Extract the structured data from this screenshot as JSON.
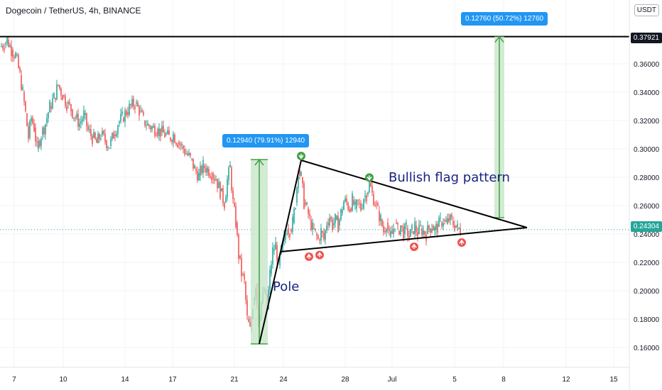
{
  "header": {
    "title": "Dogecoin / TetherUS, 4h, BINANCE",
    "currency": "USDT"
  },
  "colors": {
    "up": "#26a69a",
    "down": "#ef5350",
    "measure_fill": "#c8e6c9",
    "measure_border": "#43a047",
    "label_bg": "#2196f3",
    "current_price": "#26a69a",
    "arrow_up_marker": "#ef5350",
    "arrow_down_marker": "#43a047"
  },
  "price_tags": {
    "resistance": "0.37921",
    "current": "0.24304"
  },
  "measures": {
    "pole": "0.12940 (79.91%) 12940",
    "target": "0.12760 (50.72%) 12760"
  },
  "annotations": {
    "pole": "Pole",
    "pattern": "Bullish flag pattern"
  },
  "chart_data": {
    "type": "candlestick",
    "y_range": [
      0.145,
      0.395
    ],
    "y_ticks": [
      "0.16000",
      "0.18000",
      "0.20000",
      "0.22000",
      "0.24000",
      "0.26000",
      "0.28000",
      "0.30000",
      "0.32000",
      "0.34000",
      "0.36000"
    ],
    "x_ticks": [
      "7",
      "10",
      "14",
      "17",
      "21",
      "24",
      "28",
      "Jul",
      "5",
      "8",
      "12",
      "15"
    ],
    "resistance_level": 0.37921,
    "current_price": 0.24304,
    "grid": true,
    "close_path": [
      [
        0,
        0.372
      ],
      [
        6,
        0.374
      ],
      [
        10,
        0.377
      ],
      [
        16,
        0.37
      ],
      [
        22,
        0.366
      ],
      [
        28,
        0.352
      ],
      [
        32,
        0.34
      ],
      [
        36,
        0.325
      ],
      [
        40,
        0.308
      ],
      [
        44,
        0.322
      ],
      [
        48,
        0.315
      ],
      [
        52,
        0.3
      ],
      [
        58,
        0.31
      ],
      [
        64,
        0.318
      ],
      [
        70,
        0.33
      ],
      [
        76,
        0.336
      ],
      [
        82,
        0.345
      ],
      [
        88,
        0.338
      ],
      [
        94,
        0.332
      ],
      [
        100,
        0.328
      ],
      [
        106,
        0.322
      ],
      [
        112,
        0.318
      ],
      [
        118,
        0.324
      ],
      [
        124,
        0.313
      ],
      [
        130,
        0.308
      ],
      [
        136,
        0.304
      ],
      [
        142,
        0.31
      ],
      [
        148,
        0.306
      ],
      [
        154,
        0.302
      ],
      [
        160,
        0.31
      ],
      [
        166,
        0.318
      ],
      [
        172,
        0.322
      ],
      [
        178,
        0.326
      ],
      [
        184,
        0.33
      ],
      [
        190,
        0.332
      ],
      [
        196,
        0.327
      ],
      [
        202,
        0.32
      ],
      [
        208,
        0.317
      ],
      [
        214,
        0.315
      ],
      [
        220,
        0.314
      ],
      [
        226,
        0.312
      ],
      [
        232,
        0.31
      ],
      [
        238,
        0.308
      ],
      [
        244,
        0.31
      ],
      [
        250,
        0.305
      ],
      [
        256,
        0.302
      ],
      [
        262,
        0.297
      ],
      [
        268,
        0.293
      ],
      [
        274,
        0.286
      ],
      [
        280,
        0.281
      ],
      [
        286,
        0.288
      ],
      [
        292,
        0.286
      ],
      [
        298,
        0.283
      ],
      [
        304,
        0.279
      ],
      [
        310,
        0.27
      ],
      [
        316,
        0.262
      ],
      [
        320,
        0.278
      ],
      [
        324,
        0.287
      ],
      [
        328,
        0.262
      ],
      [
        332,
        0.248
      ],
      [
        336,
        0.225
      ],
      [
        340,
        0.212
      ],
      [
        344,
        0.206
      ],
      [
        348,
        0.18
      ],
      [
        352,
        0.172
      ],
      [
        356,
        0.19
      ],
      [
        360,
        0.205
      ],
      [
        364,
        0.178
      ],
      [
        368,
        0.192
      ],
      [
        372,
        0.2
      ],
      [
        376,
        0.187
      ],
      [
        380,
        0.212
      ],
      [
        384,
        0.228
      ],
      [
        388,
        0.232
      ],
      [
        392,
        0.218
      ],
      [
        396,
        0.228
      ],
      [
        400,
        0.236
      ],
      [
        404,
        0.244
      ],
      [
        408,
        0.243
      ],
      [
        412,
        0.248
      ],
      [
        416,
        0.262
      ],
      [
        420,
        0.285
      ],
      [
        424,
        0.28
      ],
      [
        428,
        0.262
      ],
      [
        432,
        0.258
      ],
      [
        436,
        0.25
      ],
      [
        440,
        0.244
      ],
      [
        444,
        0.24
      ],
      [
        448,
        0.236
      ],
      [
        452,
        0.242
      ],
      [
        456,
        0.236
      ],
      [
        460,
        0.248
      ],
      [
        464,
        0.252
      ],
      [
        468,
        0.246
      ],
      [
        472,
        0.25
      ],
      [
        476,
        0.246
      ],
      [
        480,
        0.255
      ],
      [
        484,
        0.263
      ],
      [
        488,
        0.262
      ],
      [
        492,
        0.258
      ],
      [
        496,
        0.264
      ],
      [
        500,
        0.258
      ],
      [
        504,
        0.262
      ],
      [
        508,
        0.258
      ],
      [
        512,
        0.266
      ],
      [
        516,
        0.268
      ],
      [
        520,
        0.276
      ],
      [
        524,
        0.268
      ],
      [
        528,
        0.262
      ],
      [
        532,
        0.256
      ],
      [
        536,
        0.25
      ],
      [
        540,
        0.242
      ],
      [
        544,
        0.248
      ],
      [
        548,
        0.238
      ],
      [
        552,
        0.24
      ],
      [
        556,
        0.248
      ],
      [
        560,
        0.242
      ],
      [
        564,
        0.246
      ],
      [
        568,
        0.24
      ],
      [
        572,
        0.244
      ],
      [
        576,
        0.238
      ],
      [
        580,
        0.242
      ],
      [
        584,
        0.246
      ],
      [
        588,
        0.24
      ],
      [
        592,
        0.244
      ],
      [
        596,
        0.242
      ],
      [
        600,
        0.24
      ],
      [
        604,
        0.244
      ],
      [
        608,
        0.246
      ],
      [
        612,
        0.243
      ],
      [
        616,
        0.245
      ],
      [
        620,
        0.248
      ],
      [
        624,
        0.25
      ],
      [
        628,
        0.247
      ],
      [
        632,
        0.25
      ],
      [
        636,
        0.249
      ],
      [
        640,
        0.246
      ],
      [
        644,
        0.244
      ],
      [
        648,
        0.243
      ]
    ]
  }
}
